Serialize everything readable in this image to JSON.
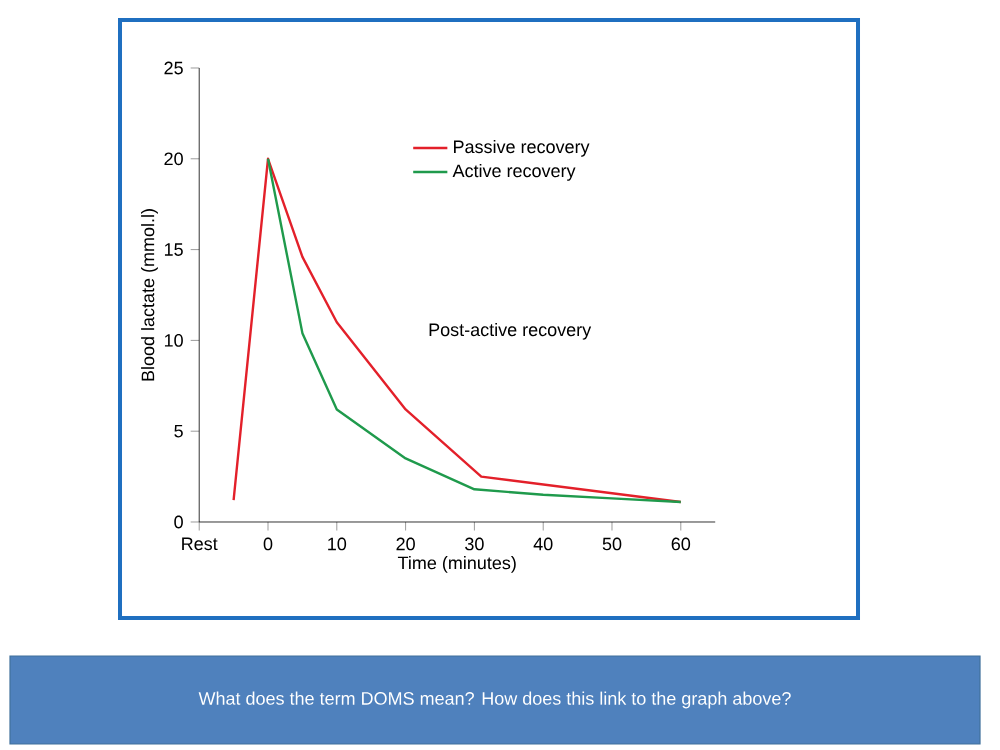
{
  "chart_data": {
    "type": "line",
    "xlabel": "Time (minutes)",
    "ylabel": "Blood lactate (mmol.l)",
    "xlim": [
      -10,
      65
    ],
    "xticks": [
      {
        "value": -10,
        "label": "Rest"
      },
      0,
      10,
      20,
      30,
      40,
      50,
      60
    ],
    "ylim": [
      0,
      25
    ],
    "yticks": [
      0,
      5,
      10,
      15,
      20,
      25
    ],
    "series": [
      {
        "name": "Passive recovery",
        "color": "#e3202a",
        "x": [
          -5,
          0,
          5,
          10,
          20,
          31,
          60
        ],
        "values": [
          1.2,
          20,
          14.6,
          11,
          6.2,
          2.5,
          1.1
        ]
      },
      {
        "name": "Active recovery",
        "color": "#1f9a4c",
        "x": [
          0,
          5,
          10,
          20,
          30,
          40,
          50,
          60
        ],
        "values": [
          20,
          10.4,
          6.2,
          3.5,
          1.8,
          1.5,
          1.3,
          1.1
        ]
      }
    ],
    "legend": "top right",
    "grid": false,
    "marker": "none",
    "line_style": "solid",
    "annotations": [
      "Post-active recovery",
      "What does the term DOMS mean? How does this link to the graph above?"
    ]
  }
}
